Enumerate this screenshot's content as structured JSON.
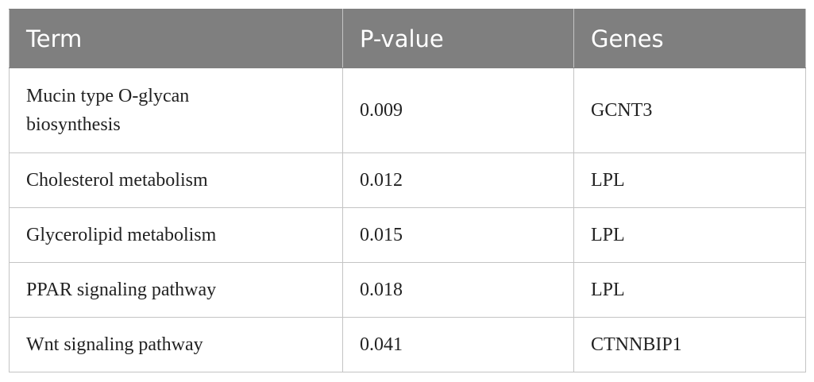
{
  "header": {
    "columns": [
      "Term",
      "P-value",
      "Genes"
    ]
  },
  "table": {
    "rows": [
      [
        "Mucin type O-glycan biosynthesis",
        "0.009",
        "GCNT3"
      ],
      [
        "Cholesterol metabolism",
        "0.012",
        "LPL"
      ],
      [
        "Glycerolipid metabolism",
        "0.015",
        "LPL"
      ],
      [
        "PPAR signaling pathway",
        "0.018",
        "LPL"
      ],
      [
        "Wnt signaling pathway",
        "0.041",
        "CTNNBIP1"
      ]
    ]
  }
}
